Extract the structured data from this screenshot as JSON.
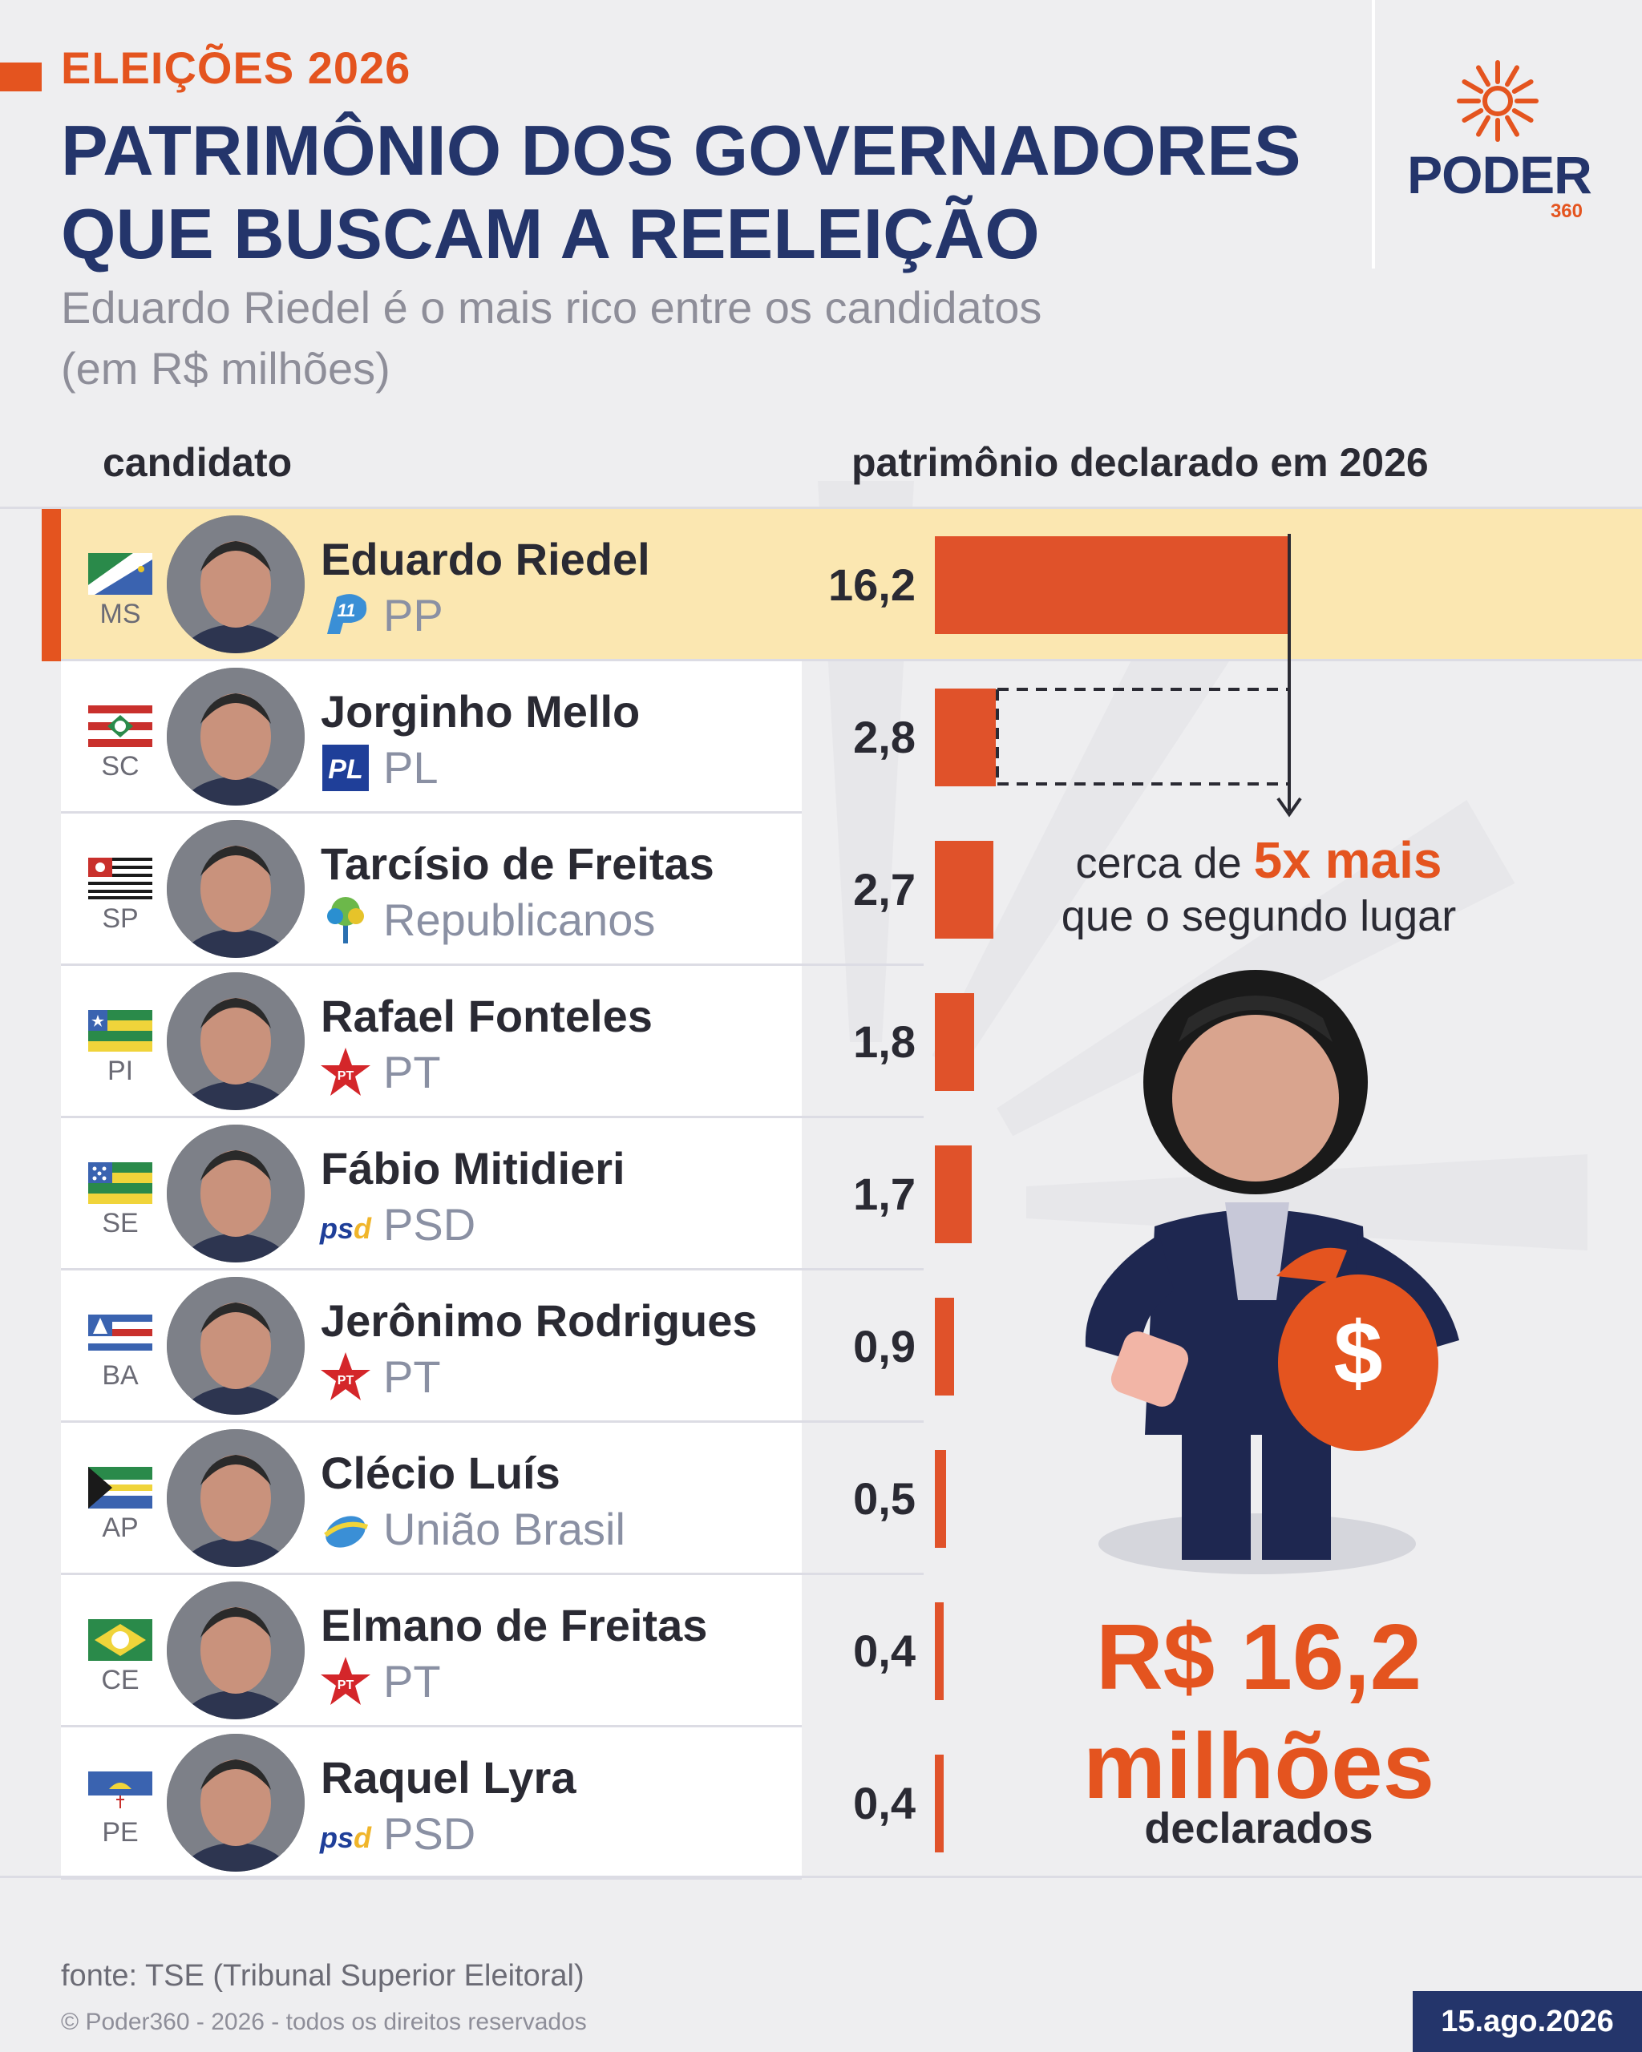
{
  "header": {
    "kicker": "ELEIÇÕES 2026",
    "title": "PATRIMÔNIO DOS GOVERNADORES QUE BUSCAM A REELEIÇÃO",
    "subtitle_line1": "Eduardo Riedel é o mais rico entre os candidatos",
    "subtitle_line2": "(em R$ milhões)"
  },
  "logo": {
    "word": "PODER",
    "number": "360"
  },
  "columns": {
    "candidate": "candidato",
    "value": "patrimônio declarado em 2026"
  },
  "chart_data": {
    "type": "bar",
    "title": "PATRIMÔNIO DOS GOVERNADORES QUE BUSCAM A REELEIÇÃO",
    "subtitle": "Eduardo Riedel é o mais rico entre os candidatos (em R$ milhões)",
    "value_axis_label": "patrimônio declarado em 2026",
    "category_axis_label": "candidato",
    "orientation": "horizontal",
    "xlim": [
      0,
      16.2
    ],
    "rows": [
      {
        "name": "Eduardo Riedel",
        "uf": "MS",
        "party": "PP",
        "party_icon": "pp-logo-icon",
        "value": 16.2,
        "value_label": "16,2",
        "highlight": true
      },
      {
        "name": "Jorginho Mello",
        "uf": "SC",
        "party": "PL",
        "party_icon": "pl-logo-icon",
        "value": 2.8,
        "value_label": "2,8",
        "highlight": false
      },
      {
        "name": "Tarcísio de Freitas",
        "uf": "SP",
        "party": "Republicanos",
        "party_icon": "republicanos-tree-icon",
        "value": 2.7,
        "value_label": "2,7",
        "highlight": false
      },
      {
        "name": "Rafael Fonteles",
        "uf": "PI",
        "party": "PT",
        "party_icon": "pt-star-icon",
        "value": 1.8,
        "value_label": "1,8",
        "highlight": false
      },
      {
        "name": "Fábio Mitidieri",
        "uf": "SE",
        "party": "PSD",
        "party_icon": "psd-logo-icon",
        "value": 1.7,
        "value_label": "1,7",
        "highlight": false
      },
      {
        "name": "Jerônimo Rodrigues",
        "uf": "BA",
        "party": "PT",
        "party_icon": "pt-star-icon",
        "value": 0.9,
        "value_label": "0,9",
        "highlight": false
      },
      {
        "name": "Clécio Luís",
        "uf": "AP",
        "party": "União Brasil",
        "party_icon": "uniao-brasil-icon",
        "value": 0.5,
        "value_label": "0,5",
        "highlight": false
      },
      {
        "name": "Elmano de Freitas",
        "uf": "CE",
        "party": "PT",
        "party_icon": "pt-star-icon",
        "value": 0.4,
        "value_label": "0,4",
        "highlight": false
      },
      {
        "name": "Raquel Lyra",
        "uf": "PE",
        "party": "PSD",
        "party_icon": "psd-logo-icon",
        "value": 0.4,
        "value_label": "0,4",
        "highlight": false
      }
    ]
  },
  "annotation": {
    "prefix": "cerca de",
    "emphasis": "5x mais",
    "line2": "que o segundo lugar",
    "big_value": "R$ 16,2",
    "big_unit": "milhões",
    "big_label": "declarados"
  },
  "colors": {
    "bar": "#e0522a",
    "accent": "#e4541f",
    "navy": "#24356b",
    "highlight_row": "#fbe7b1",
    "money_bag": "#e4541f"
  },
  "footer": {
    "source": "fonte: TSE (Tribunal Superior Eleitoral)",
    "copyright": "© Poder360 - 2026 - todos os direitos reservados",
    "date": "15.ago.2026"
  }
}
